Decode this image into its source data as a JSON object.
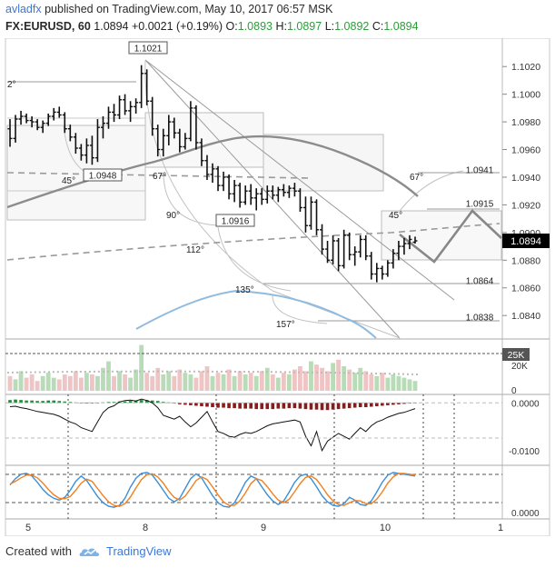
{
  "header": {
    "author": "avladfx",
    "published_text": "published on TradingView.com, May 10, 2017 06:57 MSK",
    "symbol": "FX:EURUSD, 60",
    "last": "1.0894",
    "change": "+0.0021 (+0.19%)",
    "o_label": "O:",
    "o_value": "1.0893",
    "h_label": "H:",
    "h_value": "1.0897",
    "l_label": "L:",
    "l_value": "1.0892",
    "c_label": "C:",
    "c_value": "1.0894"
  },
  "footer": {
    "created_with": "Created with",
    "brand": "TradingView"
  },
  "colors": {
    "candle": "#111111",
    "ma_slow": "#8c8c8c",
    "ma_fast": "#8fbbe0",
    "dashed": "#999999",
    "gann_box": "#bbbbbb",
    "volume_up": "#b8dcb8",
    "volume_down": "#efc4c4",
    "hist_up": "#1f8a3a",
    "hist_down": "#8b1a1a",
    "stoch_k": "#3a8fd8",
    "stoch_d": "#f08020",
    "price_badge": "#000000",
    "volume_badge": "#555555"
  },
  "chart_data": [
    {
      "type": "candlestick",
      "title": "",
      "x_ticks": [
        "5",
        "8",
        "9",
        "10",
        "1"
      ],
      "y_ticks": [
        "1.1020",
        "1.1000",
        "1.0980",
        "1.0960",
        "1.0940",
        "1.0920",
        "1.0900",
        "1.0880",
        "1.0860",
        "1.0840"
      ],
      "ylim": [
        1.0825,
        1.103
      ],
      "last_price_label": "1.0894",
      "price_labels": [
        "1.1021",
        "1.0948",
        "1.0916",
        "1.0941",
        "1.0915",
        "1.0864",
        "1.0838"
      ],
      "angle_labels": [
        "2°",
        "45°",
        "67°",
        "90°",
        "112°",
        "135°",
        "157°",
        "67°",
        "45°"
      ],
      "ohlc": [
        [
          1.0975,
          1.0982,
          1.0962,
          1.0968
        ],
        [
          1.0968,
          1.0985,
          1.0965,
          1.0982
        ],
        [
          1.0982,
          1.0988,
          1.0978,
          1.0984
        ],
        [
          1.0984,
          1.0986,
          1.0979,
          1.0981
        ],
        [
          1.0981,
          1.0984,
          1.0976,
          1.098
        ],
        [
          1.098,
          1.0982,
          1.0974,
          1.0976
        ],
        [
          1.0976,
          1.0981,
          1.0972,
          1.0979
        ],
        [
          1.0979,
          1.0986,
          1.0977,
          1.0984
        ],
        [
          1.0984,
          1.099,
          1.0981,
          1.0987
        ],
        [
          1.0987,
          1.0991,
          1.0983,
          1.0985
        ],
        [
          1.0985,
          1.0987,
          1.0972,
          1.0975
        ],
        [
          1.0975,
          1.0978,
          1.0966,
          1.0969
        ],
        [
          1.0969,
          1.0972,
          1.0957,
          1.0961
        ],
        [
          1.0961,
          1.0964,
          1.0952,
          1.0956
        ],
        [
          1.0956,
          1.0968,
          1.095,
          1.0963
        ],
        [
          1.0963,
          1.097,
          1.0949,
          1.0954
        ],
        [
          1.0954,
          1.0982,
          1.0951,
          1.0976
        ],
        [
          1.0976,
          1.0984,
          1.0968,
          1.0979
        ],
        [
          1.0979,
          1.0991,
          1.0975,
          1.0987
        ],
        [
          1.0987,
          1.0993,
          1.098,
          1.0985
        ],
        [
          1.0985,
          1.0999,
          1.0982,
          1.0996
        ],
        [
          1.0996,
          1.1,
          1.0985,
          1.0988
        ],
        [
          1.0988,
          1.0995,
          1.098,
          1.0991
        ],
        [
          1.0991,
          1.0997,
          1.0986,
          1.0994
        ],
        [
          1.0994,
          1.1021,
          1.099,
          1.1015
        ],
        [
          1.1015,
          1.1018,
          1.0992,
          1.0995
        ],
        [
          1.0995,
          1.0998,
          1.097,
          1.0975
        ],
        [
          1.0975,
          1.0978,
          1.0955,
          1.096
        ],
        [
          1.096,
          1.0975,
          1.0955,
          1.097
        ],
        [
          1.097,
          1.0985,
          1.0963,
          1.098
        ],
        [
          1.098,
          1.0983,
          1.0968,
          1.0972
        ],
        [
          1.0972,
          1.0975,
          1.0958,
          1.0962
        ],
        [
          1.0962,
          1.0972,
          1.096,
          1.0968
        ],
        [
          1.0968,
          1.0995,
          1.0966,
          1.099
        ],
        [
          1.099,
          1.0992,
          1.096,
          1.0965
        ],
        [
          1.0965,
          1.0968,
          1.0948,
          1.0952
        ],
        [
          1.0952,
          1.0956,
          1.0938,
          1.0942
        ],
        [
          1.0942,
          1.095,
          1.0936,
          1.0946
        ],
        [
          1.0946,
          1.0948,
          1.093,
          1.0934
        ],
        [
          1.0934,
          1.0944,
          1.093,
          1.094
        ],
        [
          1.094,
          1.0942,
          1.0924,
          1.0928
        ],
        [
          1.0928,
          1.0938,
          1.0922,
          1.0934
        ],
        [
          1.0934,
          1.0936,
          1.0918,
          1.0922
        ],
        [
          1.0922,
          1.0934,
          1.092,
          1.093
        ],
        [
          1.093,
          1.0935,
          1.092,
          1.0925
        ],
        [
          1.0925,
          1.0932,
          1.0916,
          1.0928
        ],
        [
          1.0928,
          1.0932,
          1.092,
          1.0924
        ],
        [
          1.0924,
          1.0934,
          1.0921,
          1.093
        ],
        [
          1.093,
          1.0934,
          1.0924,
          1.0927
        ],
        [
          1.0927,
          1.0933,
          1.0922,
          1.0931
        ],
        [
          1.0931,
          1.0935,
          1.0926,
          1.0929
        ],
        [
          1.0929,
          1.0934,
          1.0925,
          1.0932
        ],
        [
          1.0932,
          1.0936,
          1.0926,
          1.093
        ],
        [
          1.093,
          1.0932,
          1.0915,
          1.0918
        ],
        [
          1.0918,
          1.0926,
          1.09,
          1.0905
        ],
        [
          1.0905,
          1.0926,
          1.0902,
          1.0922
        ],
        [
          1.0922,
          1.0924,
          1.0898,
          1.0902
        ],
        [
          1.0902,
          1.0906,
          1.0884,
          1.0888
        ],
        [
          1.0888,
          1.0894,
          1.0878,
          1.088
        ],
        [
          1.088,
          1.0898,
          1.0877,
          1.0894
        ],
        [
          1.0894,
          1.0896,
          1.0872,
          1.0876
        ],
        [
          1.0876,
          1.0902,
          1.0874,
          1.0898
        ],
        [
          1.0898,
          1.09,
          1.088,
          1.0884
        ],
        [
          1.0884,
          1.089,
          1.0876,
          1.0886
        ],
        [
          1.0886,
          1.0898,
          1.0882,
          1.0895
        ],
        [
          1.0895,
          1.0898,
          1.088,
          1.0883
        ],
        [
          1.0883,
          1.0886,
          1.0866,
          1.087
        ],
        [
          1.087,
          1.0878,
          1.0864,
          1.0874
        ],
        [
          1.0874,
          1.0876,
          1.0866,
          1.087
        ],
        [
          1.087,
          1.088,
          1.0868,
          1.0878
        ],
        [
          1.0878,
          1.0888,
          1.0874,
          1.0885
        ],
        [
          1.0885,
          1.0894,
          1.088,
          1.089
        ],
        [
          1.089,
          1.0896,
          1.0884,
          1.0892
        ],
        [
          1.0892,
          1.0898,
          1.0888,
          1.0895
        ],
        [
          1.0893,
          1.0897,
          1.0892,
          1.0894
        ]
      ]
    },
    {
      "type": "bar",
      "title": "Volume",
      "badge": "25K",
      "y_ticks": [
        "20K",
        "0"
      ],
      "values": [
        9,
        7,
        12,
        8,
        10,
        6,
        9,
        11,
        8,
        7,
        10,
        9,
        12,
        8,
        11,
        10,
        9,
        14,
        18,
        9,
        12,
        10,
        8,
        13,
        28,
        11,
        9,
        14,
        10,
        12,
        9,
        13,
        11,
        10,
        8,
        12,
        15,
        9,
        11,
        10,
        13,
        9,
        12,
        10,
        11,
        9,
        12,
        14,
        10,
        8,
        11,
        10,
        13,
        15,
        12,
        18,
        16,
        14,
        12,
        17,
        19,
        15,
        13,
        11,
        14,
        12,
        10,
        9,
        11,
        8,
        10,
        9,
        8,
        7,
        6
      ]
    },
    {
      "type": "bar",
      "title": "MACD",
      "y_ticks": [
        "0.0000",
        "-0.0100"
      ],
      "ylim": [
        -0.0125,
        0.0012
      ],
      "histogram": [
        0.0006,
        0.0007,
        0.0006,
        0.0005,
        0.0005,
        0.0004,
        0.0004,
        0.0005,
        0.0005,
        0.0004,
        0.0003,
        0.0002,
        0.0001,
        0.0,
        -0.0001,
        -0.0001,
        0.0,
        0.0001,
        0.0002,
        0.0002,
        0.0003,
        0.0003,
        0.0004,
        0.0005,
        0.0006,
        0.0006,
        0.0005,
        0.0004,
        0.0002,
        0.0001,
        -0.0001,
        -0.0003,
        -0.0004,
        -0.0005,
        -0.0006,
        -0.0007,
        -0.0008,
        -0.0009,
        -0.001,
        -0.001,
        -0.0011,
        -0.0011,
        -0.0012,
        -0.0012,
        -0.0012,
        -0.0013,
        -0.0013,
        -0.0013,
        -0.0013,
        -0.0012,
        -0.0012,
        -0.0011,
        -0.0011,
        -0.0012,
        -0.0013,
        -0.0014,
        -0.0014,
        -0.0015,
        -0.0015,
        -0.0014,
        -0.0013,
        -0.0012,
        -0.0011,
        -0.001,
        -0.0009,
        -0.0009,
        -0.0008,
        -0.0007,
        -0.0006,
        -0.0005,
        -0.0004,
        -0.0003,
        -0.0002,
        -0.0001,
        0.0
      ],
      "line": [
        -0.0008,
        -0.0007,
        -0.001,
        -0.0012,
        -0.0015,
        -0.0018,
        -0.002,
        -0.0022,
        -0.0024,
        -0.0028,
        -0.0034,
        -0.004,
        -0.0044,
        -0.0052,
        -0.0056,
        -0.006,
        -0.004,
        -0.002,
        -0.001,
        -0.0006,
        0.0002,
        0.0005,
        0.0006,
        0.0004,
        0.0008,
        0.0005,
        0.0,
        -0.001,
        -0.0026,
        -0.003,
        -0.0034,
        -0.0028,
        -0.004,
        -0.005,
        -0.0042,
        -0.003,
        -0.0018,
        -0.004,
        -0.006,
        -0.0064,
        -0.007,
        -0.0072,
        -0.0066,
        -0.0062,
        -0.0064,
        -0.006,
        -0.0054,
        -0.0048,
        -0.0044,
        -0.0042,
        -0.004,
        -0.0038,
        -0.0036,
        -0.004,
        -0.007,
        -0.009,
        -0.006,
        -0.01,
        -0.008,
        -0.0072,
        -0.0064,
        -0.007,
        -0.0076,
        -0.0064,
        -0.0052,
        -0.006,
        -0.0048,
        -0.004,
        -0.0036,
        -0.003,
        -0.0026,
        -0.0022,
        -0.002,
        -0.0016,
        -0.0012
      ]
    },
    {
      "type": "line",
      "title": "Stochastic",
      "y_ticks": [
        "0.0000"
      ],
      "ylim": [
        0,
        100
      ],
      "bands": [
        80,
        20
      ],
      "series": [
        {
          "values": [
            60,
            74,
            84,
            86,
            80,
            66,
            50,
            38,
            30,
            26,
            32,
            48,
            68,
            80,
            70,
            52,
            34,
            20,
            12,
            10,
            14,
            30,
            55,
            75,
            86,
            88,
            82,
            66,
            48,
            30,
            22,
            30,
            52,
            74,
            85,
            76,
            56,
            36,
            20,
            12,
            10,
            20,
            42,
            66,
            80,
            74,
            56,
            38,
            24,
            16,
            24,
            44,
            66,
            80,
            84,
            74,
            56,
            36,
            22,
            14,
            12,
            18,
            32,
            26,
            16,
            14,
            24,
            44,
            66,
            82,
            88,
            86,
            84,
            82,
            80
          ]
        },
        {
          "values": [
            62,
            68,
            76,
            82,
            82,
            76,
            64,
            50,
            38,
            30,
            29,
            34,
            48,
            64,
            73,
            68,
            52,
            36,
            22,
            14,
            12,
            18,
            33,
            53,
            72,
            83,
            85,
            78,
            64,
            46,
            32,
            26,
            35,
            52,
            70,
            78,
            72,
            56,
            38,
            22,
            14,
            14,
            24,
            42,
            63,
            74,
            70,
            56,
            40,
            26,
            20,
            28,
            45,
            63,
            77,
            80,
            72,
            56,
            38,
            24,
            16,
            14,
            20,
            25,
            24,
            18,
            18,
            28,
            44,
            64,
            78,
            86,
            86,
            84,
            82
          ]
        }
      ]
    }
  ]
}
